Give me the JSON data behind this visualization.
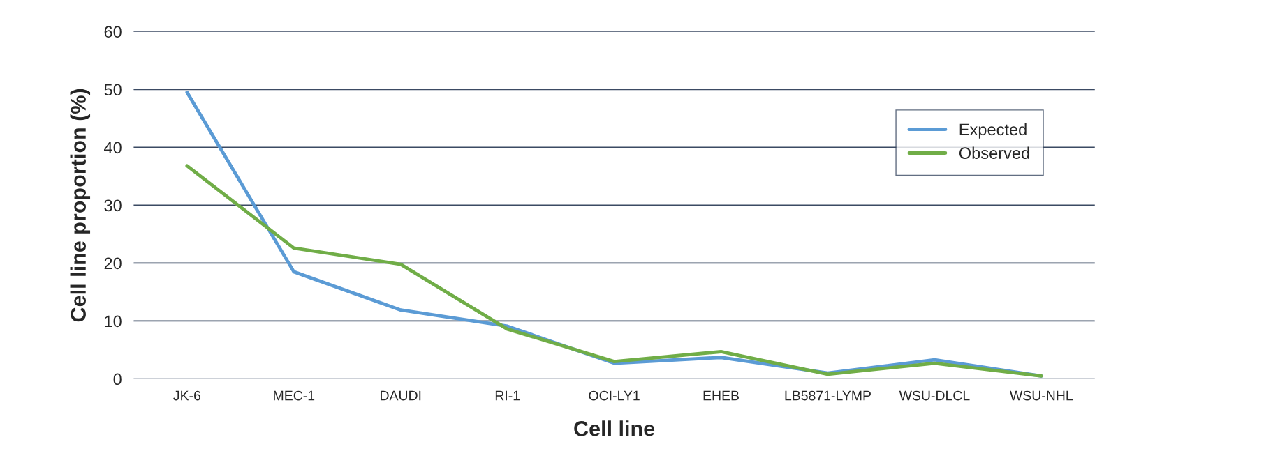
{
  "chart_data": {
    "type": "line",
    "xlabel": "Cell line",
    "ylabel": "Cell line proportion (%)",
    "categories": [
      "JK-6",
      "MEC-1",
      "DAUDI",
      "RI-1",
      "OCI-LY1",
      "EHEB",
      "LB5871-LYMP",
      "WSU-DLCL",
      "WSU-NHL"
    ],
    "series": [
      {
        "name": "Expected",
        "color": "#5b9bd5",
        "values": [
          49.5,
          18.5,
          11.9,
          9.1,
          2.7,
          3.7,
          1.0,
          3.3,
          0.5
        ]
      },
      {
        "name": "Observed",
        "color": "#70ad47",
        "values": [
          36.8,
          22.6,
          19.8,
          8.6,
          3.0,
          4.7,
          0.8,
          2.7,
          0.5
        ]
      }
    ],
    "ylim": [
      0,
      60
    ],
    "yticks": [
      0,
      10,
      20,
      30,
      40,
      50,
      60
    ],
    "grid": "y",
    "legend": "right",
    "marker": "none",
    "line_style": "solid"
  }
}
